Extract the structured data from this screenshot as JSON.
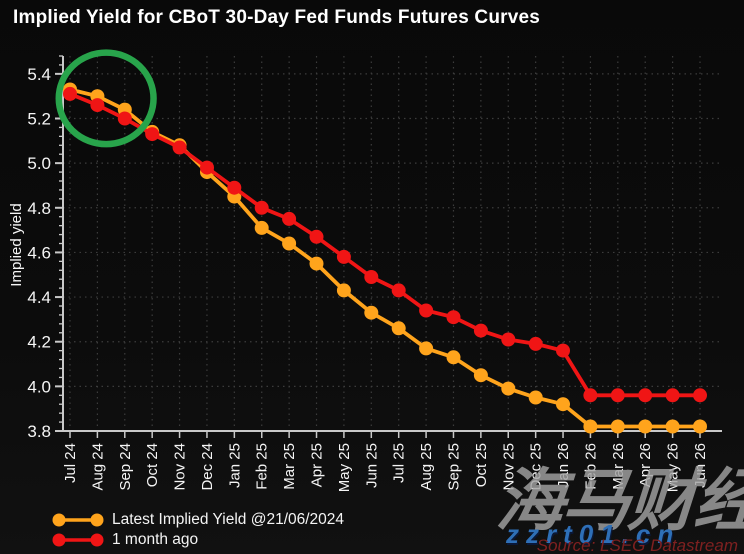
{
  "title": "Implied Yield for CBoT 30-Day Fed Funds Futures Curves",
  "source": "Source: LSEG Datastream",
  "watermark": {
    "cjk": "海马财经",
    "url": "zzrt01.cn"
  },
  "legend": [
    {
      "label": "Latest Implied Yield @21/06/2024",
      "color": "#FFA41C"
    },
    {
      "label": "1 month ago",
      "color": "#F01515"
    }
  ],
  "chart_data": {
    "type": "line",
    "title": "Implied Yield for CBoT 30-Day Fed Funds Futures Curves",
    "xlabel": "",
    "ylabel": "Implied yield",
    "ylim": [
      3.8,
      5.48
    ],
    "yticks": [
      5.4,
      5.2,
      5.0,
      4.8,
      4.6,
      4.4,
      4.2,
      4.0,
      3.8
    ],
    "y_minor_step": 0.04,
    "grid": "dotted",
    "legend_position": "bottom-left",
    "categories": [
      "Jul 24",
      "Aug 24",
      "Sep 24",
      "Oct 24",
      "Nov 24",
      "Dec 24",
      "Jan 25",
      "Feb 25",
      "Mar 25",
      "Apr 25",
      "May 25",
      "Jun 25",
      "Jul 25",
      "Aug 25",
      "Sep 25",
      "Oct 25",
      "Nov 25",
      "Dec 25",
      "Jan 26",
      "Feb 26",
      "Mar 26",
      "Apr 26",
      "May 26",
      "Jun 26"
    ],
    "series": [
      {
        "name": "Latest Implied Yield @21/06/2024",
        "color": "#FFA41C",
        "values": [
          5.33,
          5.3,
          5.24,
          5.14,
          5.08,
          4.96,
          4.85,
          4.71,
          4.64,
          4.55,
          4.43,
          4.33,
          4.26,
          4.17,
          4.13,
          4.05,
          3.99,
          3.95,
          3.92,
          3.82,
          3.82,
          3.82,
          3.82,
          3.82
        ]
      },
      {
        "name": "1 month ago",
        "color": "#F01515",
        "values": [
          5.31,
          5.26,
          5.2,
          5.13,
          5.07,
          4.98,
          4.89,
          4.8,
          4.75,
          4.67,
          4.58,
          4.49,
          4.43,
          4.34,
          4.31,
          4.25,
          4.21,
          4.19,
          4.16,
          3.96,
          3.96,
          3.96,
          3.96,
          3.96
        ]
      }
    ],
    "annotation": {
      "shape": "ellipse",
      "note": "highlight circle around Jul 24 - Sep 24 points",
      "cx_category_index": 1.32,
      "cy_value": 5.29,
      "rx_months": 1.73,
      "ry_value": 0.205,
      "color": "#28A44B",
      "stroke_width": 6.5
    },
    "colors": {
      "background": "#0b0b0b",
      "axis": "#c9c9c9",
      "grid": "#3c3c3c",
      "tick_text": "#f5f5f5"
    }
  }
}
